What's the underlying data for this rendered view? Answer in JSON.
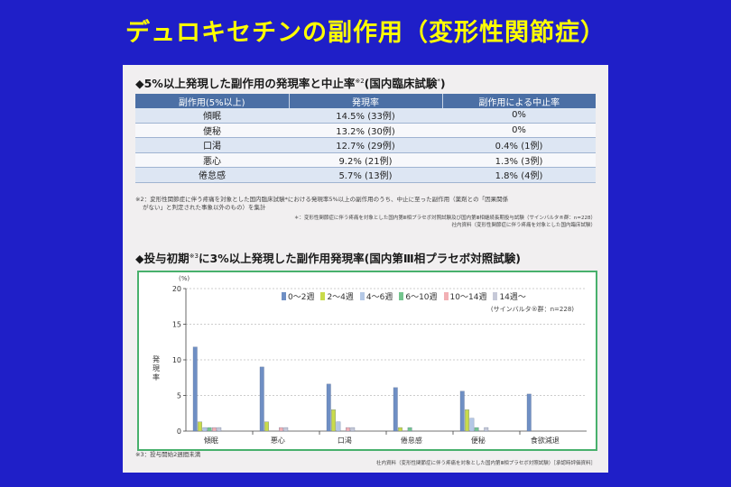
{
  "slide_title": "デュロキセチンの副作用（変形性関節症）",
  "section1": {
    "title": "◆5%以上発現した副作用の発現率と中止率",
    "title_sup": "※2",
    "title_suffix": "(国内臨床試験",
    "title_suffix_sup": "*",
    "title_end": ")",
    "headers": [
      "副作用(5%以上)",
      "発現率",
      "副作用による中止率"
    ],
    "rows": [
      [
        "傾眠",
        "14.5% (33例)",
        "0%"
      ],
      [
        "便秘",
        "13.2% (30例)",
        "0%"
      ],
      [
        "口渇",
        "12.7% (29例)",
        "0.4% (1例)"
      ],
      [
        "悪心",
        "9.2% (21例)",
        "1.3% (3例)"
      ],
      [
        "倦怠感",
        "5.7% (13例)",
        "1.8% (4例)"
      ]
    ],
    "footnote1": "※2：変形性関節症に伴う疼痛を対象とした国内臨床試験*における発現率5%以上の副作用のうち、中止に至った副作用（薬剤との「因果関係",
    "footnote2": "がない」と判定された事象以外のもの）を集計",
    "footnote3": "＊：変形性関節症に伴う疼痛を対象とした国内第Ⅲ相プラセボ対照試験及び国内第Ⅲ相継続長期投与試験（サインバルタ®群：n=228）",
    "footnote4": "社内資料（変形性関節症に伴う疼痛を対象とした国内臨床試験）"
  },
  "section2": {
    "title": "◆投与初期",
    "title_sup": "※3",
    "title_rest": "に3%以上発現した副作用発現率(国内第Ⅲ相プラセボ対照試験)",
    "footnote1": "※3：投与開始2週間未満",
    "footnote2": "社内資料（変形性関節症に伴う疼痛を対象とした国内第Ⅲ相プラセボ対照試験）［承認時評価資料］"
  },
  "chart_data": {
    "type": "bar",
    "yunit": "(%)",
    "ylabel": "発現率",
    "ylim": [
      0,
      20
    ],
    "yticks": [
      0,
      5,
      10,
      15,
      20
    ],
    "group_note": "(サインバルタ®群：n=228)",
    "categories": [
      "傾眠",
      "悪心",
      "口渇",
      "倦怠感",
      "便秘",
      "食欲減退"
    ],
    "series": [
      {
        "name": "0～2週",
        "color": "#6f8fc4",
        "values": [
          11.8,
          9.0,
          6.6,
          6.1,
          5.6,
          5.2
        ]
      },
      {
        "name": "2～4週",
        "color": "#c9db4a",
        "values": [
          1.3,
          1.3,
          3.0,
          0.5,
          3.0,
          0.0
        ]
      },
      {
        "name": "4～6週",
        "color": "#b4c8e6",
        "values": [
          0.5,
          0.0,
          1.3,
          0.0,
          1.8,
          0.0
        ]
      },
      {
        "name": "6～10週",
        "color": "#74c58e",
        "values": [
          0.5,
          0.0,
          0.0,
          0.5,
          0.5,
          0.0
        ]
      },
      {
        "name": "10～14週",
        "color": "#f2b0b4",
        "values": [
          0.5,
          0.5,
          0.5,
          0.0,
          0.0,
          0.0
        ]
      },
      {
        "name": "14週～",
        "color": "#c6c9d8",
        "values": [
          0.5,
          0.5,
          0.5,
          0.0,
          0.5,
          0.0
        ]
      }
    ],
    "grid": true
  }
}
